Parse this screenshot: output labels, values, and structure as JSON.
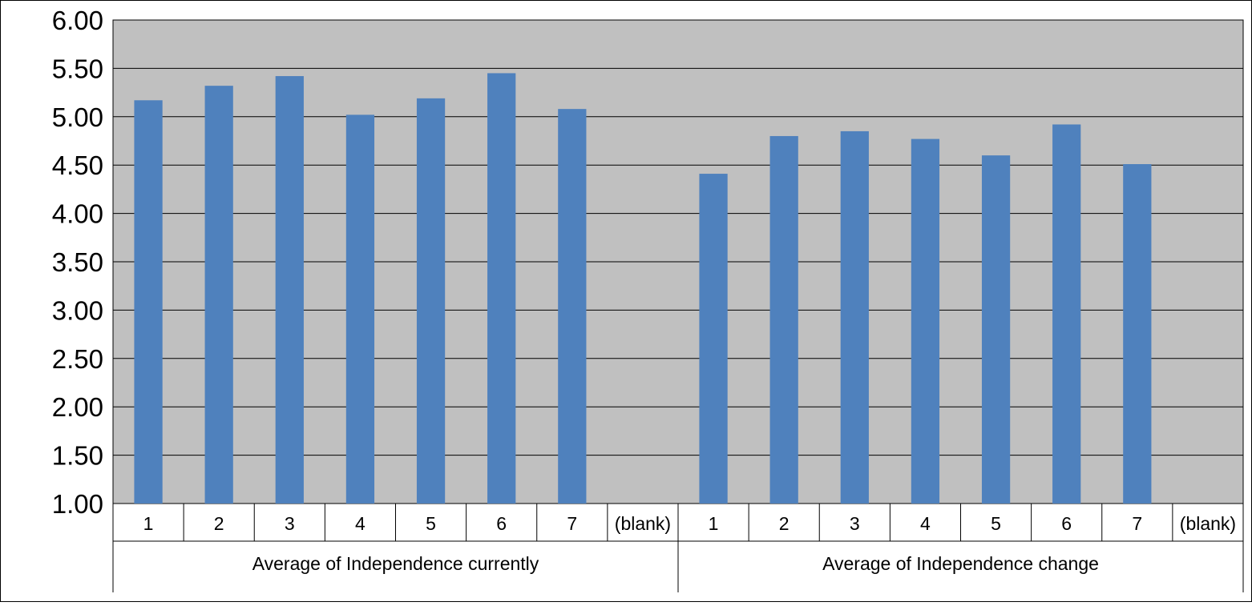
{
  "chart_data": {
    "type": "bar",
    "title": "",
    "xlabel": "",
    "ylabel": "",
    "ylim": [
      1.0,
      6.0
    ],
    "y_ticks": [
      "1.00",
      "1.50",
      "2.00",
      "2.50",
      "3.00",
      "3.50",
      "4.00",
      "4.50",
      "5.00",
      "5.50",
      "6.00"
    ],
    "grid": true,
    "legend": "none",
    "colors": {
      "bar": "#4f81bd",
      "plot_background": "#c0c0c0",
      "gridline": "#000000"
    },
    "groups": [
      {
        "name": "Average of Independence currently",
        "categories": [
          "1",
          "2",
          "3",
          "4",
          "5",
          "6",
          "7",
          "(blank)"
        ],
        "values": [
          5.17,
          5.32,
          5.42,
          5.02,
          5.19,
          5.45,
          5.08,
          null
        ]
      },
      {
        "name": "Average of Independence change",
        "categories": [
          "1",
          "2",
          "3",
          "4",
          "5",
          "6",
          "7",
          "(blank)"
        ],
        "values": [
          4.41,
          4.8,
          4.85,
          4.77,
          4.6,
          4.92,
          4.51,
          null
        ]
      }
    ]
  }
}
